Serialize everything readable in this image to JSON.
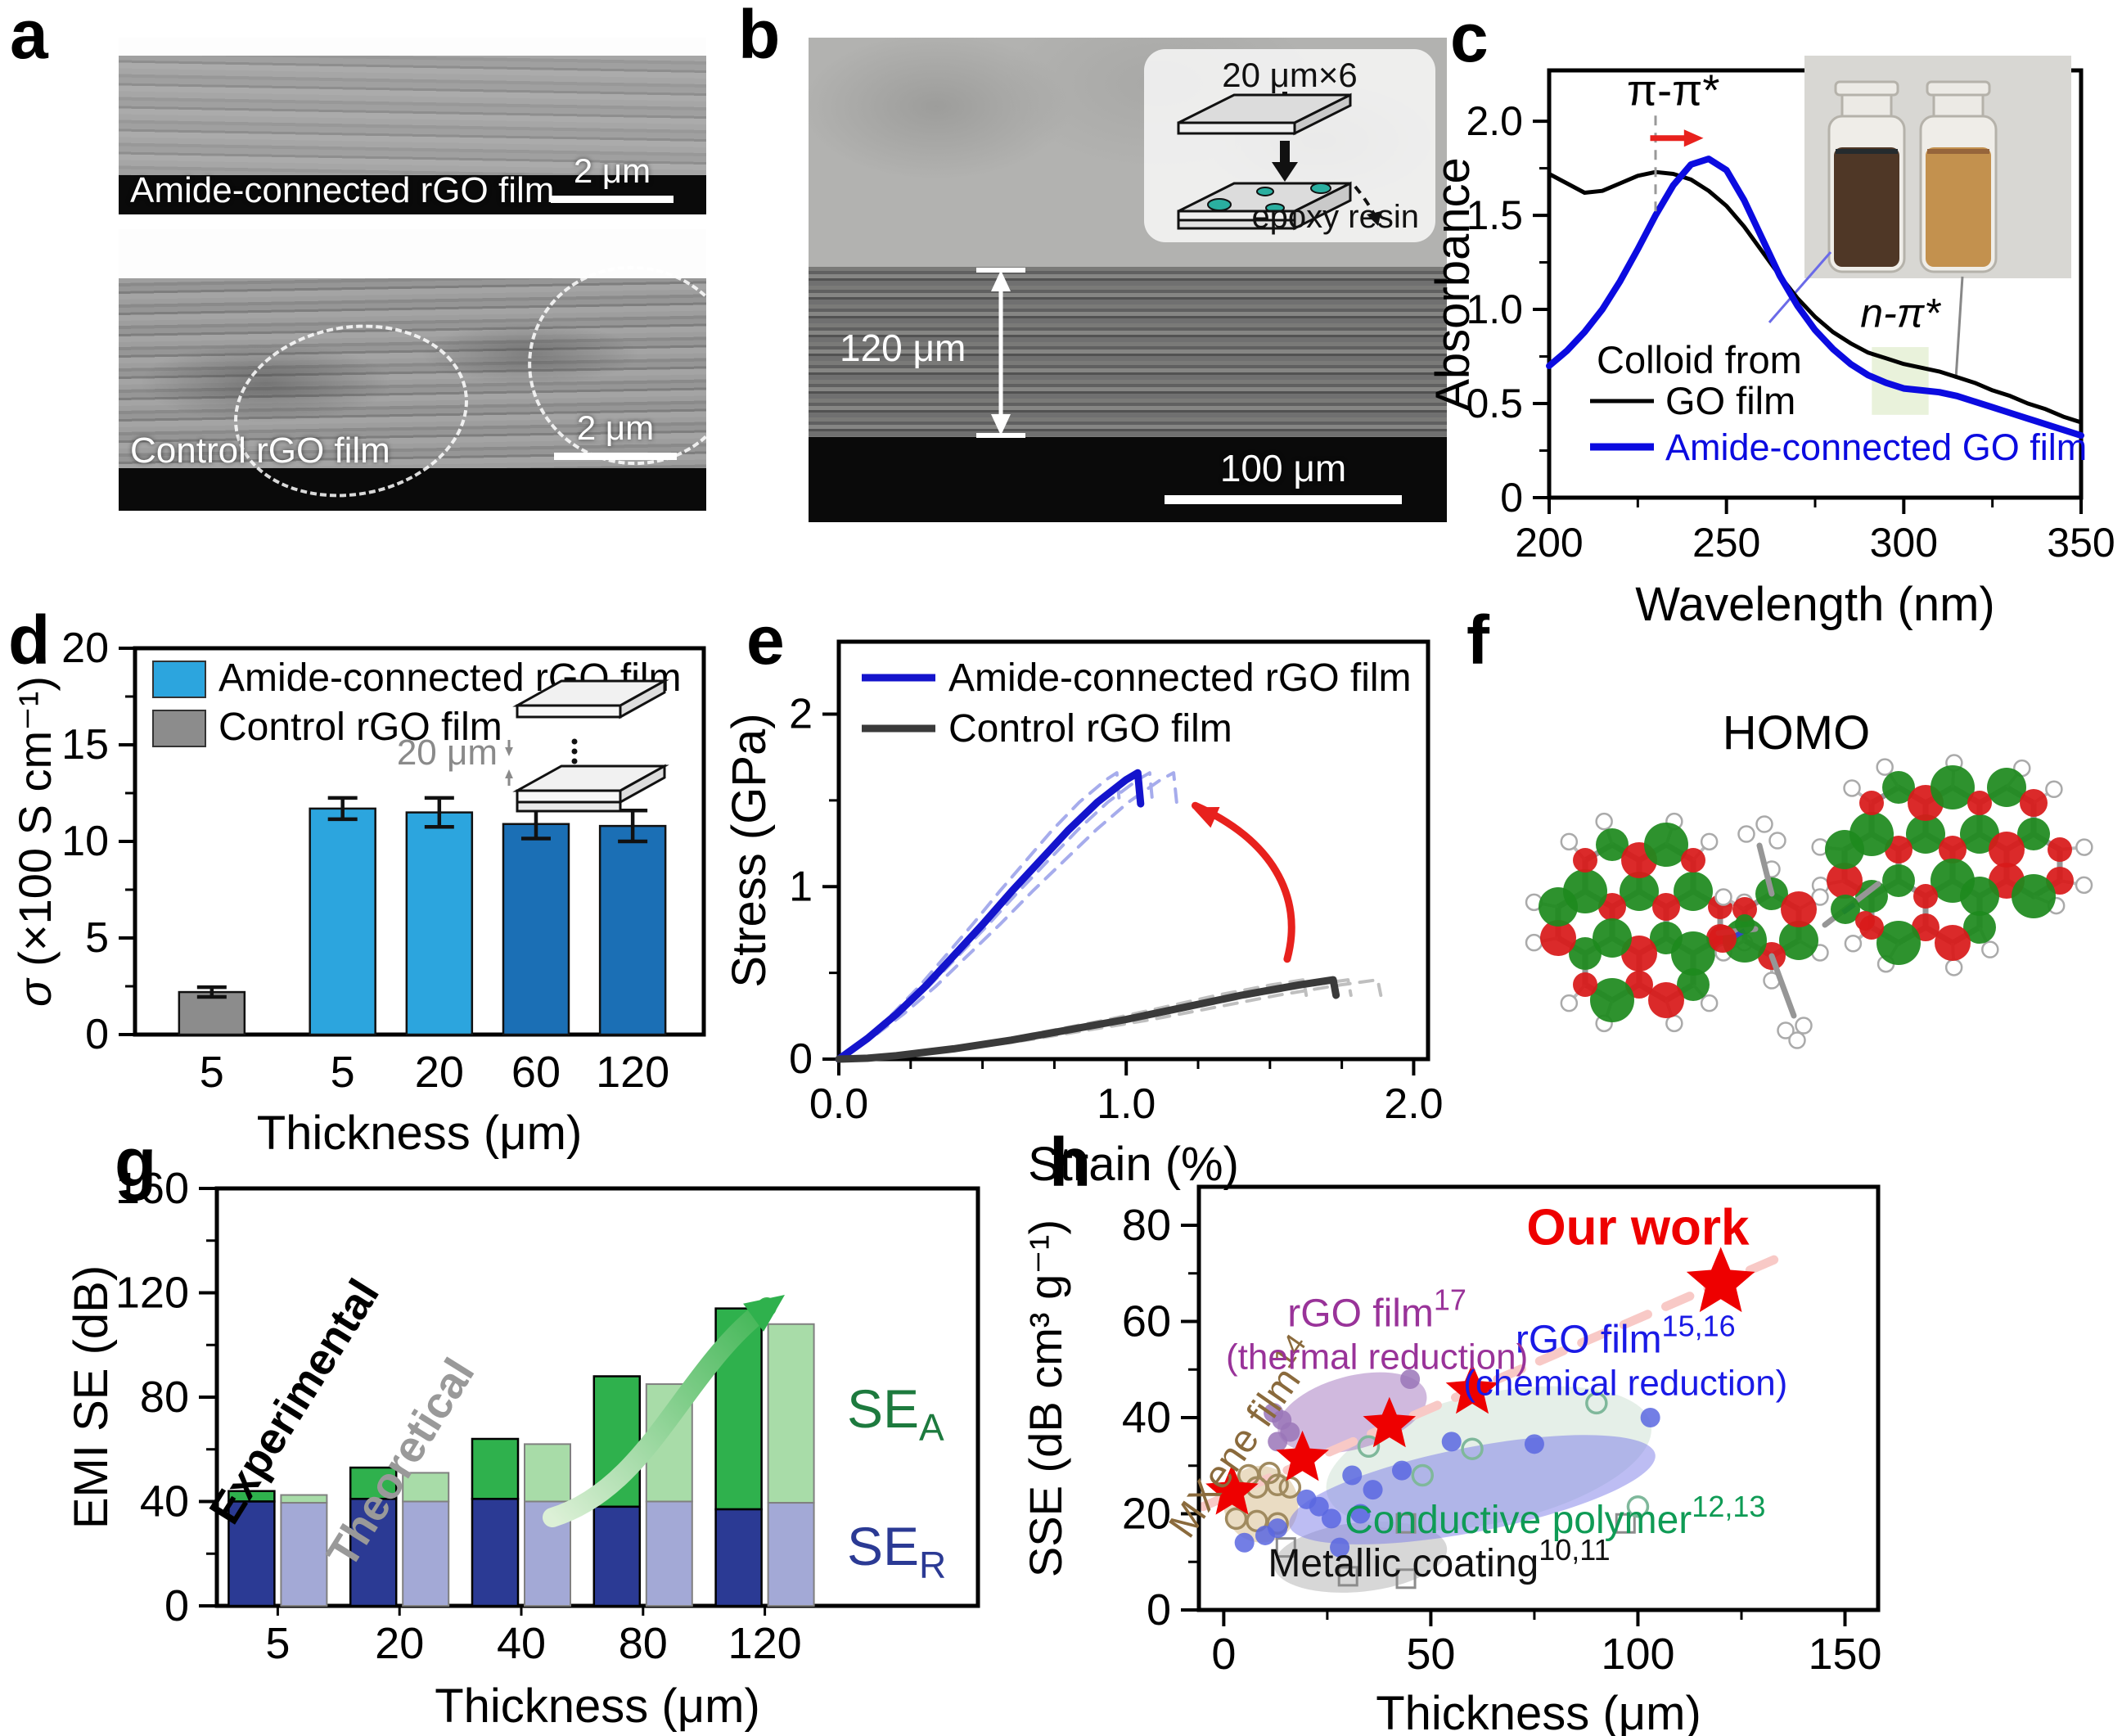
{
  "figure": {
    "panels": {
      "a": {
        "label": "a",
        "images": [
          {
            "caption": "Amide-connected rGO film",
            "scalebar": "2 μm"
          },
          {
            "caption": "Control rGO film",
            "scalebar": "2 μm"
          }
        ]
      },
      "b": {
        "label": "b",
        "thickness_annotation": "120 μm",
        "scalebar": "100 μm",
        "inset": {
          "title": "20 μm×6",
          "caption": "epoxy resin"
        }
      },
      "c": {
        "label": "c"
      },
      "d": {
        "label": "d"
      },
      "e": {
        "label": "e"
      },
      "f": {
        "label": "f",
        "title": "HOMO"
      },
      "g": {
        "label": "g"
      },
      "h": {
        "label": "h"
      }
    }
  },
  "chart_data": [
    {
      "panel": "c",
      "type": "line",
      "xlabel": "Wavelength (nm)",
      "ylabel": "Absorbance",
      "xlim": [
        200,
        350
      ],
      "ylim": [
        0,
        2.27
      ],
      "xticks": [
        200,
        250,
        300,
        350
      ],
      "xtick_labels": [
        "200",
        "250",
        "300",
        "350"
      ],
      "xminor": [
        225,
        275,
        325
      ],
      "yticks": [
        0,
        0.5,
        1.0,
        1.5,
        2.0
      ],
      "ytick_labels": [
        "0",
        "0.5",
        "1.0",
        "1.5",
        "2.0"
      ],
      "yminor": [
        0.25,
        0.75,
        1.25,
        1.75
      ],
      "legend_title": "Colloid from",
      "annotations": {
        "pi_pi": "π-π*",
        "n_pi": "n-π*"
      },
      "peak_shift_line_nm": 230,
      "n_pi_band_nm": [
        291,
        307
      ],
      "series": [
        {
          "name": "GO film",
          "color": "#000000",
          "width": 5,
          "x_start": 200,
          "x_step": 5,
          "y": [
            1.72,
            1.67,
            1.62,
            1.63,
            1.67,
            1.71,
            1.73,
            1.72,
            1.69,
            1.63,
            1.55,
            1.44,
            1.31,
            1.18,
            1.06,
            0.96,
            0.88,
            0.82,
            0.77,
            0.74,
            0.71,
            0.69,
            0.67,
            0.64,
            0.61,
            0.57,
            0.54,
            0.5,
            0.47,
            0.43,
            0.4
          ]
        },
        {
          "name": "Amide-connected GO film",
          "color": "#0B0BE0",
          "width": 8,
          "x_start": 200,
          "x_step": 5,
          "y": [
            0.7,
            0.78,
            0.88,
            1.0,
            1.15,
            1.32,
            1.5,
            1.66,
            1.77,
            1.8,
            1.74,
            1.58,
            1.38,
            1.18,
            1.02,
            0.89,
            0.79,
            0.71,
            0.65,
            0.61,
            0.58,
            0.57,
            0.56,
            0.54,
            0.51,
            0.48,
            0.45,
            0.42,
            0.39,
            0.36,
            0.33
          ]
        }
      ]
    },
    {
      "panel": "d",
      "type": "bar",
      "xlabel": "Thickness (μm)",
      "ylabel_sigma": "σ",
      "ylabel_rest": " (×100 S cm⁻¹)",
      "categories": [
        "5",
        "5",
        "20",
        "60",
        "120"
      ],
      "values": [
        2.2,
        11.7,
        11.5,
        10.9,
        10.8
      ],
      "errors": [
        0.25,
        0.55,
        0.75,
        0.75,
        0.8
      ],
      "bar_colors": [
        "#8C8C8C",
        "#2CA5DE",
        "#2CA5DE",
        "#1B6FB5",
        "#1B6FB5"
      ],
      "ylim": [
        0,
        20
      ],
      "yticks": [
        0,
        5,
        10,
        15,
        20
      ],
      "yminor": [
        2.5,
        7.5,
        12.5,
        17.5
      ],
      "legend": [
        {
          "label": "Amide-connected rGO film",
          "color": "#2CA5DE"
        },
        {
          "label": "Control rGO film",
          "color": "#8C8C8C"
        }
      ],
      "inset_label": "20 μm"
    },
    {
      "panel": "e",
      "type": "line",
      "xlabel": "Strain (%)",
      "ylabel": "Stress (GPa)",
      "xlim": [
        0,
        2.05
      ],
      "ylim": [
        0,
        2.42
      ],
      "xticks": [
        0,
        1,
        2
      ],
      "xtick_labels": [
        "0.0",
        "1.0",
        "2.0"
      ],
      "xminor": [
        0.25,
        0.5,
        0.75,
        1.25,
        1.5,
        1.75
      ],
      "yticks": [
        0,
        1,
        2
      ],
      "ytick_labels": [
        "0",
        "1",
        "2"
      ],
      "yminor": [
        0.5,
        1.5
      ],
      "series": [
        {
          "name": "Amide-connected rGO film",
          "color": "#1414CC",
          "width": 9,
          "points": [
            [
              0,
              0
            ],
            [
              0.1,
              0.12
            ],
            [
              0.2,
              0.26
            ],
            [
              0.3,
              0.42
            ],
            [
              0.4,
              0.6
            ],
            [
              0.5,
              0.78
            ],
            [
              0.6,
              0.97
            ],
            [
              0.7,
              1.15
            ],
            [
              0.8,
              1.33
            ],
            [
              0.9,
              1.49
            ],
            [
              1.0,
              1.62
            ],
            [
              1.04,
              1.66
            ],
            [
              1.05,
              1.48
            ]
          ],
          "replicate_color": "#A6ACEC",
          "replicate_scales": [
            0.93,
            1.04,
            1.12
          ]
        },
        {
          "name": "Control rGO film",
          "color": "#3A3A3A",
          "width": 9,
          "points": [
            [
              0,
              0
            ],
            [
              0.1,
              0.005
            ],
            [
              0.2,
              0.02
            ],
            [
              0.4,
              0.06
            ],
            [
              0.6,
              0.11
            ],
            [
              0.8,
              0.17
            ],
            [
              1.0,
              0.23
            ],
            [
              1.2,
              0.3
            ],
            [
              1.4,
              0.37
            ],
            [
              1.6,
              0.43
            ],
            [
              1.72,
              0.46
            ],
            [
              1.73,
              0.37
            ]
          ],
          "replicate_color": "#BFBFBF",
          "replicate_scales": [
            0.94,
            1.03,
            1.09
          ]
        }
      ]
    },
    {
      "panel": "g",
      "type": "stacked-bar",
      "xlabel": "Thickness (μm)",
      "ylabel": "EMI SE (dB)",
      "categories": [
        "5",
        "20",
        "40",
        "80",
        "120"
      ],
      "ylim": [
        0,
        160
      ],
      "yticks": [
        0,
        40,
        80,
        120,
        160
      ],
      "yminor": [
        20,
        60,
        100,
        140
      ],
      "experimental": {
        "label": "Experimental",
        "ser": [
          40,
          41,
          41,
          38,
          37
        ],
        "sea": [
          4,
          12,
          23,
          50,
          77
        ],
        "ser_color": "#2B3A94",
        "sea_color": "#2FB14D"
      },
      "theoretical": {
        "label": "Theoretical",
        "ser": [
          39.5,
          40,
          40,
          40,
          39.5
        ],
        "sea": [
          3,
          11,
          22,
          45,
          68.5
        ],
        "ser_color": "#A3A9D6",
        "sea_color": "#A8DCA8"
      },
      "sea_label": {
        "text": "SE",
        "sub": "A",
        "color": "#1D7A3E"
      },
      "ser_label": {
        "text": "SE",
        "sub": "R",
        "color": "#2B3A94"
      }
    },
    {
      "panel": "h",
      "type": "scatter",
      "xlabel": "Thickness (μm)",
      "ylabel": "SSE (dB cm³ g⁻¹)",
      "xlim": [
        -6,
        158
      ],
      "ylim": [
        0,
        88
      ],
      "xticks": [
        0,
        50,
        100,
        150
      ],
      "xminor": [
        25,
        75,
        125
      ],
      "yticks": [
        0,
        20,
        40,
        60,
        80
      ],
      "yminor": [
        10,
        30,
        50,
        70
      ],
      "our_work": {
        "label": "Our work",
        "color": "#EE0000",
        "points": [
          [
            2,
            24.5
          ],
          [
            19,
            31.5
          ],
          [
            40,
            38.5
          ],
          [
            60,
            45.5
          ],
          [
            120,
            68
          ]
        ]
      },
      "trendline": {
        "color": "#F8C9C6",
        "from": [
          -5,
          21.5
        ],
        "to": [
          136,
          74
        ]
      },
      "groups": [
        {
          "name": "MXene film",
          "ref": "14",
          "text_color": "#8A6A3C",
          "marker": "circle-open",
          "marker_color": "#A08A5F",
          "points": [
            [
              6,
              28
            ],
            [
              11,
              28.5
            ],
            [
              8,
              25.5
            ],
            [
              13,
              26
            ],
            [
              16,
              25.5
            ],
            [
              3,
              19
            ],
            [
              8,
              18.5
            ],
            [
              13,
              18
            ]
          ],
          "ellipse": {
            "cx": 9,
            "cy": 22,
            "rx": 9,
            "ry": 8,
            "rot": -18,
            "fill": "#E6D6B8",
            "opacity": 0.85
          },
          "label_pos": [
            7.5,
            34
          ],
          "label_rot": -55
        },
        {
          "name": "Metallic coating",
          "ref": "10,11",
          "text_color": "#111111",
          "marker": "square-open",
          "marker_color": "#8C8C8C",
          "points": [
            [
              15,
              13
            ],
            [
              30,
              7
            ],
            [
              44,
              6.5
            ],
            [
              44,
              18
            ],
            [
              97,
              18
            ]
          ],
          "ellipse": {
            "cx": 33,
            "cy": 11,
            "rx": 21,
            "ry": 7.2,
            "rot": -6,
            "fill": "#CDCDCD",
            "opacity": 0.8
          },
          "label_pos": [
            52,
            7
          ],
          "label_rot": 0
        },
        {
          "name": "Conductive polymer",
          "ref": "12,13",
          "text_color": "#0F9B55",
          "marker": "circle-open",
          "marker_color": "#7FB89B",
          "points": [
            [
              35,
              34
            ],
            [
              48,
              28
            ],
            [
              60,
              33.5
            ],
            [
              90,
              43
            ],
            [
              100,
              21.5
            ]
          ],
          "ellipse": {
            "cx": 64,
            "cy": 31.5,
            "rx": 40,
            "ry": 13.5,
            "rot": -12,
            "fill": "#DCEAE0",
            "opacity": 0.75
          },
          "label_pos": [
            80,
            16
          ],
          "label_rot": 0
        },
        {
          "name": "rGO film",
          "ref": "15,16",
          "sub": "(chemical reduction)",
          "text_color": "#1A1AE6",
          "marker": "circle",
          "marker_color": "#5B67E0",
          "points": [
            [
              5,
              14
            ],
            [
              10,
              15.5
            ],
            [
              13,
              17
            ],
            [
              20,
              23
            ],
            [
              23,
              21.5
            ],
            [
              26,
              19
            ],
            [
              28,
              13
            ],
            [
              31,
              28
            ],
            [
              36,
              25
            ],
            [
              43,
              29
            ],
            [
              55,
              35
            ],
            [
              75,
              34.5
            ],
            [
              103,
              40
            ],
            [
              33,
              20
            ]
          ],
          "ellipse": {
            "cx": 60,
            "cy": 25,
            "rx": 45,
            "ry": 8.8,
            "rot": -11,
            "fill": "#7B7BE8",
            "opacity": 0.5
          },
          "label_pos": [
            97,
            53.5
          ],
          "label_rot": 0
        },
        {
          "name": "rGO film",
          "ref": "17",
          "sub": "(thermal reduction)",
          "text_color": "#993399",
          "marker": "circle",
          "marker_color": "#9A76B8",
          "points": [
            [
              14,
              39.5
            ],
            [
              16,
              37
            ],
            [
              13,
              35
            ],
            [
              45,
              48
            ],
            [
              12,
              41
            ]
          ],
          "ellipse": {
            "cx": 31,
            "cy": 41,
            "rx": 18.5,
            "ry": 7.6,
            "rot": -15,
            "fill": "#A97FC2",
            "opacity": 0.55
          },
          "label_pos": [
            37,
            59
          ],
          "label_rot": 0
        }
      ]
    }
  ]
}
